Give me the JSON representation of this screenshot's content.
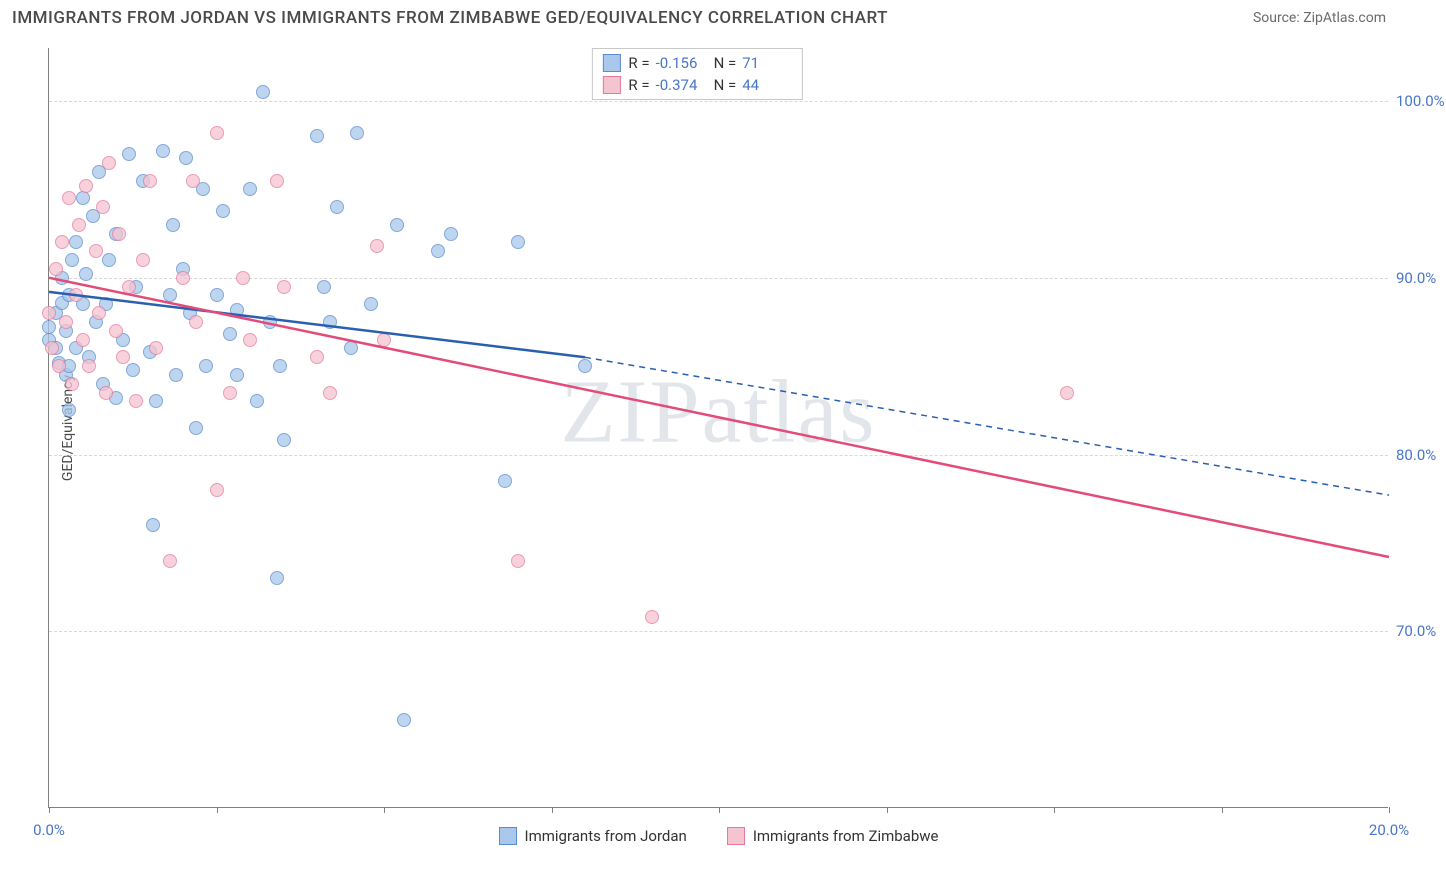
{
  "title": "IMMIGRANTS FROM JORDAN VS IMMIGRANTS FROM ZIMBABWE GED/EQUIVALENCY CORRELATION CHART",
  "source": "Source: ZipAtlas.com",
  "y_axis_label": "GED/Equivalency",
  "watermark": "ZIPatlas",
  "chart": {
    "xlim": [
      0,
      20
    ],
    "ylim": [
      60,
      103
    ],
    "x_ticks": [
      0,
      2.5,
      5,
      7.5,
      10,
      12.5,
      15,
      17.5,
      20
    ],
    "x_tick_labels": {
      "0": "0.0%",
      "20": "20.0%"
    },
    "y_ticks": [
      70,
      80,
      90,
      100
    ],
    "y_tick_labels": {
      "70": "70.0%",
      "80": "80.0%",
      "90": "90.0%",
      "100": "100.0%"
    },
    "grid_color": "#d8d8d8",
    "series": [
      {
        "name": "Immigrants from Jordan",
        "fill": "#a9c8ec",
        "stroke": "#5b8cce",
        "line_color": "#2a5fb0",
        "R": "-0.156",
        "N": "71",
        "trend": {
          "x0": 0,
          "y0": 89.2,
          "x1_solid": 8.0,
          "y1_solid": 85.5,
          "x1_dash": 20,
          "y1_dash": 77.7
        },
        "points": [
          [
            0.0,
            87.2
          ],
          [
            0.0,
            86.5
          ],
          [
            0.1,
            88.0
          ],
          [
            0.1,
            86.0
          ],
          [
            0.15,
            85.2
          ],
          [
            0.2,
            88.6
          ],
          [
            0.2,
            90.0
          ],
          [
            0.25,
            87.0
          ],
          [
            0.25,
            84.5
          ],
          [
            0.3,
            85.0
          ],
          [
            0.3,
            89.0
          ],
          [
            0.35,
            91.0
          ],
          [
            0.4,
            92.0
          ],
          [
            0.4,
            86.0
          ],
          [
            0.5,
            94.5
          ],
          [
            0.5,
            88.5
          ],
          [
            0.55,
            90.2
          ],
          [
            0.6,
            85.5
          ],
          [
            0.65,
            93.5
          ],
          [
            0.7,
            87.5
          ],
          [
            0.75,
            96.0
          ],
          [
            0.8,
            84.0
          ],
          [
            0.85,
            88.5
          ],
          [
            0.9,
            91.0
          ],
          [
            1.0,
            83.2
          ],
          [
            1.0,
            92.5
          ],
          [
            1.1,
            86.5
          ],
          [
            1.2,
            97.0
          ],
          [
            1.25,
            84.8
          ],
          [
            1.3,
            89.5
          ],
          [
            1.4,
            95.5
          ],
          [
            1.5,
            85.8
          ],
          [
            1.55,
            76.0
          ],
          [
            1.6,
            83.0
          ],
          [
            1.7,
            97.2
          ],
          [
            1.8,
            89.0
          ],
          [
            1.85,
            93.0
          ],
          [
            1.9,
            84.5
          ],
          [
            2.0,
            90.5
          ],
          [
            2.05,
            96.8
          ],
          [
            2.1,
            88.0
          ],
          [
            2.2,
            81.5
          ],
          [
            2.3,
            95.0
          ],
          [
            2.35,
            85.0
          ],
          [
            2.5,
            89.0
          ],
          [
            2.6,
            93.8
          ],
          [
            2.7,
            86.8
          ],
          [
            2.8,
            84.5
          ],
          [
            2.8,
            88.2
          ],
          [
            3.0,
            95.0
          ],
          [
            3.1,
            83.0
          ],
          [
            3.2,
            100.5
          ],
          [
            3.3,
            87.5
          ],
          [
            3.4,
            73.0
          ],
          [
            3.45,
            85.0
          ],
          [
            3.5,
            80.8
          ],
          [
            4.0,
            98.0
          ],
          [
            4.1,
            89.5
          ],
          [
            4.2,
            87.5
          ],
          [
            4.3,
            94.0
          ],
          [
            4.5,
            86.0
          ],
          [
            4.6,
            98.2
          ],
          [
            4.8,
            88.5
          ],
          [
            5.2,
            93.0
          ],
          [
            5.3,
            65.0
          ],
          [
            5.8,
            91.5
          ],
          [
            6.0,
            92.5
          ],
          [
            6.8,
            78.5
          ],
          [
            7.0,
            92.0
          ],
          [
            8.0,
            85.0
          ],
          [
            0.3,
            82.5
          ]
        ]
      },
      {
        "name": "Immigrants from Zimbabwe",
        "fill": "#f5c4d1",
        "stroke": "#e67a9a",
        "line_color": "#e34b78",
        "R": "-0.374",
        "N": "44",
        "trend": {
          "x0": 0,
          "y0": 90.0,
          "x1_solid": 20,
          "y1_solid": 74.2
        },
        "points": [
          [
            0.0,
            88.0
          ],
          [
            0.05,
            86.0
          ],
          [
            0.1,
            90.5
          ],
          [
            0.15,
            85.0
          ],
          [
            0.2,
            92.0
          ],
          [
            0.25,
            87.5
          ],
          [
            0.3,
            94.5
          ],
          [
            0.35,
            84.0
          ],
          [
            0.4,
            89.0
          ],
          [
            0.45,
            93.0
          ],
          [
            0.5,
            86.5
          ],
          [
            0.55,
            95.2
          ],
          [
            0.6,
            85.0
          ],
          [
            0.7,
            91.5
          ],
          [
            0.75,
            88.0
          ],
          [
            0.8,
            94.0
          ],
          [
            0.85,
            83.5
          ],
          [
            0.9,
            96.5
          ],
          [
            1.0,
            87.0
          ],
          [
            1.05,
            92.5
          ],
          [
            1.1,
            85.5
          ],
          [
            1.2,
            89.5
          ],
          [
            1.3,
            83.0
          ],
          [
            1.4,
            91.0
          ],
          [
            1.5,
            95.5
          ],
          [
            1.6,
            86.0
          ],
          [
            1.8,
            74.0
          ],
          [
            2.0,
            90.0
          ],
          [
            2.15,
            95.5
          ],
          [
            2.2,
            87.5
          ],
          [
            2.5,
            78.0
          ],
          [
            2.5,
            98.2
          ],
          [
            2.7,
            83.5
          ],
          [
            3.0,
            86.5
          ],
          [
            3.4,
            95.5
          ],
          [
            3.5,
            89.5
          ],
          [
            4.0,
            85.5
          ],
          [
            4.2,
            83.5
          ],
          [
            4.9,
            91.8
          ],
          [
            5.0,
            86.5
          ],
          [
            7.0,
            74.0
          ],
          [
            9.0,
            70.8
          ],
          [
            15.2,
            83.5
          ],
          [
            2.9,
            90.0
          ]
        ]
      }
    ]
  },
  "legend_bottom": [
    {
      "label": "Immigrants from Jordan",
      "fill": "#a9c8ec",
      "stroke": "#5b8cce"
    },
    {
      "label": "Immigrants from Zimbabwe",
      "fill": "#f5c4d1",
      "stroke": "#e67a9a"
    }
  ]
}
